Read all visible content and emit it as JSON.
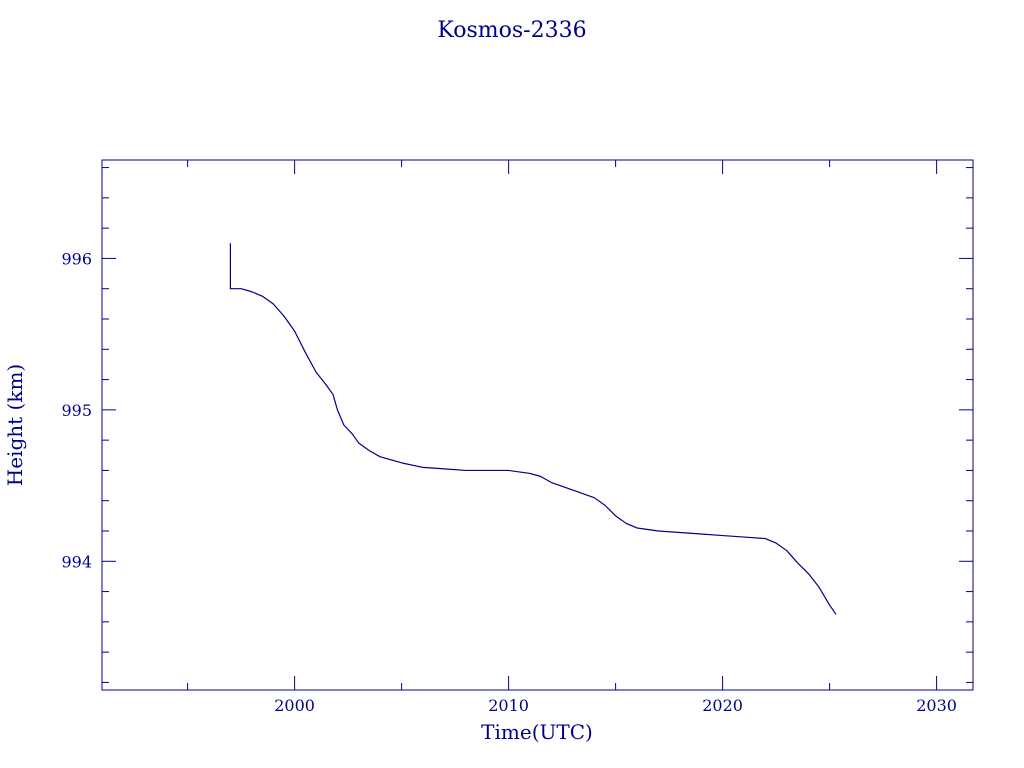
{
  "chart_data": {
    "type": "line",
    "title": "Kosmos-2336",
    "xlabel": "Time(UTC)",
    "ylabel": "Height (km)",
    "xlim": [
      1991.0,
      2031.7
    ],
    "ylim": [
      993.15,
      996.65
    ],
    "x_ticks": [
      2000,
      2010,
      2020,
      2030
    ],
    "x_tick_labels": [
      "2000",
      "2010",
      "2020",
      "2030"
    ],
    "y_ticks": [
      994,
      995,
      996
    ],
    "y_tick_labels": [
      "994",
      "995",
      "996"
    ],
    "grid": false,
    "colors": {
      "line": "#00008b",
      "text": "#00008b",
      "axes": "#00008b"
    },
    "series": [
      {
        "values": [
          [
            1997.0,
            996.1
          ],
          [
            1997.0,
            995.8
          ],
          [
            1997.5,
            995.8
          ],
          [
            1998.0,
            995.78
          ],
          [
            1998.5,
            995.75
          ],
          [
            1999.0,
            995.7
          ],
          [
            1999.5,
            995.62
          ],
          [
            2000.0,
            995.52
          ],
          [
            2000.5,
            995.38
          ],
          [
            2001.0,
            995.25
          ],
          [
            2001.5,
            995.16
          ],
          [
            2001.8,
            995.1
          ],
          [
            2002.0,
            995.0
          ],
          [
            2002.3,
            994.9
          ],
          [
            2002.7,
            994.84
          ],
          [
            2003.0,
            994.78
          ],
          [
            2003.5,
            994.73
          ],
          [
            2004.0,
            994.69
          ],
          [
            2005.0,
            994.65
          ],
          [
            2006.0,
            994.62
          ],
          [
            2007.0,
            994.61
          ],
          [
            2008.0,
            994.6
          ],
          [
            2009.0,
            994.6
          ],
          [
            2010.0,
            994.6
          ],
          [
            2011.0,
            994.58
          ],
          [
            2011.5,
            994.56
          ],
          [
            2012.0,
            994.52
          ],
          [
            2013.0,
            994.47
          ],
          [
            2014.0,
            994.42
          ],
          [
            2014.5,
            994.37
          ],
          [
            2015.0,
            994.3
          ],
          [
            2015.5,
            994.25
          ],
          [
            2016.0,
            994.22
          ],
          [
            2017.0,
            994.2
          ],
          [
            2018.0,
            994.19
          ],
          [
            2019.0,
            994.18
          ],
          [
            2020.0,
            994.17
          ],
          [
            2021.0,
            994.16
          ],
          [
            2022.0,
            994.15
          ],
          [
            2022.5,
            994.12
          ],
          [
            2023.0,
            994.07
          ],
          [
            2023.5,
            993.99
          ],
          [
            2024.0,
            993.92
          ],
          [
            2024.5,
            993.83
          ],
          [
            2025.0,
            993.71
          ],
          [
            2025.3,
            993.65
          ]
        ]
      }
    ]
  }
}
